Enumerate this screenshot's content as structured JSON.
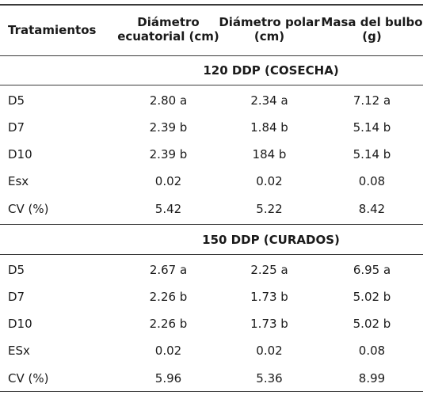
{
  "header": {
    "col0": "Tratamientos",
    "col1_line1": "Diámetro",
    "col1_line2": "ecuatorial (cm)",
    "col2_line1": "Diámetro polar",
    "col2_line2": "(cm)",
    "col3_line1": "Masa del bulbo",
    "col3_line2": "(g)"
  },
  "sections": [
    {
      "title": "120 DDP (COSECHA)",
      "rows": [
        {
          "treatment": "D5",
          "ecuatorial": "2.80 a",
          "polar": "2.34 a",
          "masa": "7.12 a"
        },
        {
          "treatment": "D7",
          "ecuatorial": "2.39 b",
          "polar": "1.84 b",
          "masa": "5.14 b"
        },
        {
          "treatment": "D10",
          "ecuatorial": "2.39 b",
          "polar": "184 b",
          "masa": "5.14 b"
        },
        {
          "treatment": "Esx",
          "ecuatorial": "0.02",
          "polar": "0.02",
          "masa": "0.08"
        },
        {
          "treatment": "CV (%)",
          "ecuatorial": "5.42",
          "polar": "5.22",
          "masa": "8.42"
        }
      ]
    },
    {
      "title": "150 DDP (CURADOS)",
      "rows": [
        {
          "treatment": "D5",
          "ecuatorial": "2.67 a",
          "polar": "2.25 a",
          "masa": "6.95 a"
        },
        {
          "treatment": "D7",
          "ecuatorial": "2.26 b",
          "polar": "1.73 b",
          "masa": "5.02 b"
        },
        {
          "treatment": "D10",
          "ecuatorial": "2.26 b",
          "polar": "1.73 b",
          "masa": "5.02 b"
        },
        {
          "treatment": "ESx",
          "ecuatorial": "0.02",
          "polar": "0.02",
          "masa": "0.08"
        },
        {
          "treatment": "CV (%)",
          "ecuatorial": "5.96",
          "polar": "5.36",
          "masa": "8.99"
        }
      ]
    }
  ]
}
